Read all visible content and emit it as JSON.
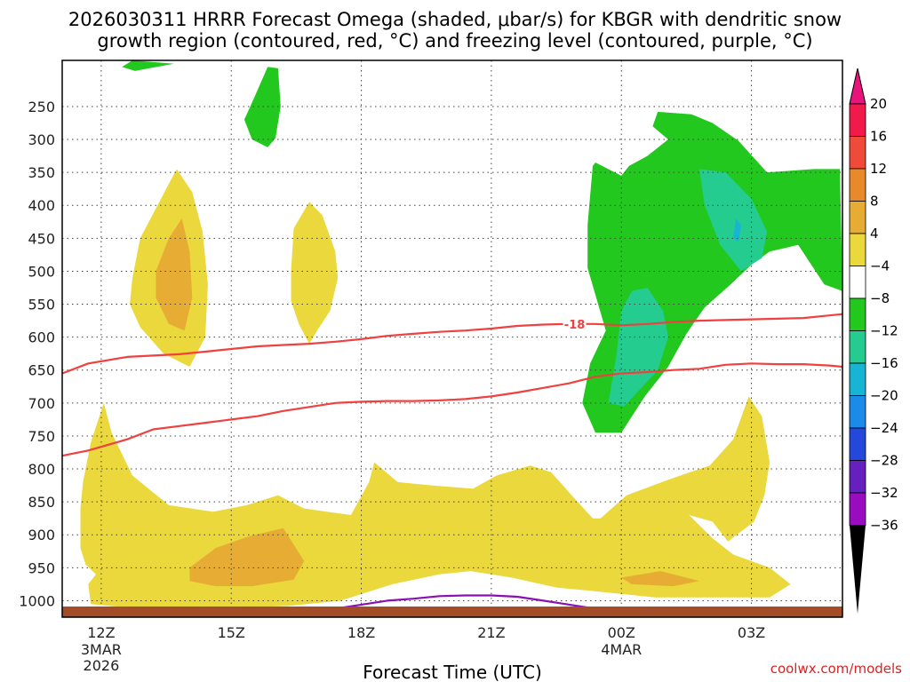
{
  "chart_data": {
    "type": "contour",
    "title_line1": "2026030311 HRRR Forecast Omega (shaded, μbar/s) for KBGR with dendritic snow",
    "title_line2": "growth region (contoured, red, °C) and freezing level (contoured, purple, °C)",
    "xlabel": "Forecast Time (UTC)",
    "watermark": "coolwx.com/models",
    "x_range_hours": [
      -1.5,
      28.5
    ],
    "x_ticks": [
      {
        "hour": 0,
        "label": "12Z",
        "sub1": "3MAR",
        "sub2": "2026"
      },
      {
        "hour": 5,
        "label": "15Z",
        "sub1": "",
        "sub2": ""
      },
      {
        "hour": 10,
        "label": "18Z",
        "sub1": "",
        "sub2": ""
      },
      {
        "hour": 15,
        "label": "21Z",
        "sub1": "",
        "sub2": ""
      },
      {
        "hour": 20,
        "label": "00Z",
        "sub1": "4MAR",
        "sub2": ""
      },
      {
        "hour": 25,
        "label": "03Z",
        "sub1": "",
        "sub2": ""
      }
    ],
    "y_range_hpa": [
      1025,
      180
    ],
    "y_ticks": [
      250,
      300,
      350,
      400,
      450,
      500,
      550,
      600,
      650,
      700,
      750,
      800,
      850,
      900,
      950,
      1000
    ],
    "colorbar": {
      "levels": [
        "20",
        "16",
        "12",
        "8",
        "4",
        "−4",
        "−8",
        "−12",
        "−16",
        "−20",
        "−24",
        "−28",
        "−32",
        "−36"
      ],
      "colors": [
        "#f21a4a",
        "#f04a3a",
        "#e88a2c",
        "#e6ac34",
        "#ead83c",
        "#ffffff",
        "#22c81e",
        "#24cc90",
        "#18b4d4",
        "#1c8ae8",
        "#2448dc",
        "#6620c0",
        "#9a0cc0",
        "#a8a8a8"
      ],
      "top_arrow_color": "#e8147c",
      "bottom_arrow_color": "#000000"
    },
    "contour_labels": [
      {
        "label": "-18",
        "hour": 18.2,
        "hpa": 580
      }
    ],
    "omega_regions": [
      {
        "omega": "-4 to -8",
        "color": "#22c81e",
        "pts": [
          [
            0.8,
            190
          ],
          [
            1.3,
            196
          ],
          [
            2.8,
            185
          ],
          [
            1.2,
            180
          ]
        ]
      },
      {
        "omega": "-4 to -8",
        "color": "#22c81e",
        "pts": [
          [
            5.9,
            235
          ],
          [
            6.4,
            190
          ],
          [
            6.8,
            192
          ],
          [
            6.9,
            250
          ],
          [
            6.7,
            298
          ],
          [
            6.4,
            312
          ],
          [
            5.8,
            300
          ],
          [
            5.5,
            270
          ]
        ]
      },
      {
        "omega": "-4 to -8",
        "color": "#22c81e",
        "pts": [
          [
            19.0,
            335
          ],
          [
            20.0,
            355
          ],
          [
            20.3,
            340
          ],
          [
            21.0,
            325
          ],
          [
            21.8,
            300
          ],
          [
            21.2,
            280
          ],
          [
            21.4,
            258
          ],
          [
            22.7,
            262
          ],
          [
            23.5,
            275
          ],
          [
            24.5,
            302
          ],
          [
            25.6,
            350
          ],
          [
            27.4,
            345
          ],
          [
            28.4,
            345
          ],
          [
            28.5,
            530
          ],
          [
            27.8,
            520
          ],
          [
            26.8,
            460
          ],
          [
            25.7,
            470
          ],
          [
            25.0,
            490
          ],
          [
            24.2,
            520
          ],
          [
            23.2,
            555
          ],
          [
            22.5,
            595
          ],
          [
            21.8,
            645
          ],
          [
            20.9,
            690
          ],
          [
            20.0,
            745
          ],
          [
            19.0,
            745
          ],
          [
            18.5,
            700
          ],
          [
            18.8,
            640
          ],
          [
            19.4,
            590
          ],
          [
            18.7,
            495
          ],
          [
            18.7,
            430
          ],
          [
            18.9,
            340
          ]
        ]
      },
      {
        "omega": "-8 to -12",
        "color": "#24cc90",
        "pts": [
          [
            23.0,
            345
          ],
          [
            24.0,
            350
          ],
          [
            25.0,
            390
          ],
          [
            25.6,
            440
          ],
          [
            25.4,
            480
          ],
          [
            24.6,
            500
          ],
          [
            23.8,
            460
          ],
          [
            23.2,
            400
          ]
        ]
      },
      {
        "omega": "-8 to -12",
        "color": "#24cc90",
        "pts": [
          [
            21.0,
            525
          ],
          [
            21.6,
            560
          ],
          [
            21.8,
            600
          ],
          [
            21.4,
            650
          ],
          [
            20.7,
            680
          ],
          [
            20.1,
            705
          ],
          [
            19.5,
            700
          ],
          [
            19.8,
            630
          ],
          [
            20.0,
            560
          ],
          [
            20.4,
            530
          ]
        ]
      },
      {
        "omega": "-12 to -16",
        "color": "#18b4d4",
        "pts": [
          [
            24.4,
            420
          ],
          [
            24.6,
            430
          ],
          [
            24.5,
            455
          ],
          [
            24.3,
            450
          ]
        ]
      },
      {
        "omega": "4 to 8",
        "color": "#ead83c",
        "pts": [
          [
            1.2,
            510
          ],
          [
            1.5,
            450
          ],
          [
            2.3,
            390
          ],
          [
            2.9,
            345
          ],
          [
            3.5,
            380
          ],
          [
            3.9,
            440
          ],
          [
            4.1,
            520
          ],
          [
            4.0,
            600
          ],
          [
            3.4,
            645
          ],
          [
            2.4,
            625
          ],
          [
            1.5,
            585
          ],
          [
            1.1,
            550
          ]
        ]
      },
      {
        "omega": "8 to 12",
        "color": "#e6ac34",
        "pts": [
          [
            2.1,
            500
          ],
          [
            2.6,
            450
          ],
          [
            3.1,
            420
          ],
          [
            3.4,
            470
          ],
          [
            3.5,
            540
          ],
          [
            3.2,
            590
          ],
          [
            2.6,
            580
          ],
          [
            2.1,
            540
          ]
        ]
      },
      {
        "omega": "4 to 8",
        "color": "#ead83c",
        "pts": [
          [
            7.3,
            500
          ],
          [
            7.4,
            435
          ],
          [
            8.0,
            395
          ],
          [
            8.5,
            415
          ],
          [
            9.0,
            470
          ],
          [
            9.1,
            510
          ],
          [
            8.8,
            560
          ],
          [
            8.3,
            590
          ],
          [
            8.0,
            610
          ],
          [
            7.6,
            580
          ],
          [
            7.3,
            545
          ]
        ]
      },
      {
        "omega": "4 to 8",
        "color": "#ead83c",
        "pts": [
          [
            -0.8,
            860
          ],
          [
            -0.7,
            820
          ],
          [
            -0.4,
            760
          ],
          [
            0.1,
            700
          ],
          [
            0.4,
            745
          ],
          [
            1.2,
            810
          ],
          [
            2.6,
            855
          ],
          [
            4.3,
            865
          ],
          [
            5.6,
            855
          ],
          [
            6.8,
            840
          ],
          [
            7.8,
            860
          ],
          [
            9.6,
            870
          ],
          [
            10.3,
            820
          ],
          [
            10.5,
            790
          ],
          [
            11.4,
            820
          ],
          [
            12.7,
            825
          ],
          [
            14.3,
            830
          ],
          [
            15.2,
            810
          ],
          [
            16.5,
            795
          ],
          [
            17.3,
            805
          ],
          [
            18.2,
            845
          ],
          [
            18.9,
            875
          ],
          [
            19.2,
            875
          ],
          [
            20.2,
            840
          ],
          [
            21.9,
            815
          ],
          [
            23.4,
            795
          ],
          [
            24.3,
            755
          ],
          [
            24.9,
            690
          ],
          [
            25.4,
            720
          ],
          [
            25.7,
            790
          ],
          [
            25.5,
            840
          ],
          [
            25.1,
            880
          ],
          [
            24.1,
            910
          ],
          [
            23.5,
            880
          ],
          [
            22.6,
            870
          ],
          [
            23.5,
            905
          ],
          [
            24.3,
            930
          ],
          [
            25.7,
            950
          ],
          [
            26.5,
            975
          ],
          [
            25.7,
            995
          ],
          [
            23.3,
            995
          ],
          [
            21.3,
            995
          ],
          [
            18.8,
            985
          ],
          [
            17.5,
            980
          ],
          [
            15.8,
            965
          ],
          [
            14.2,
            955
          ],
          [
            13.0,
            960
          ],
          [
            11.2,
            975
          ],
          [
            9.2,
            1000
          ],
          [
            7.2,
            1008
          ],
          [
            4.3,
            1012
          ],
          [
            1.4,
            1012
          ],
          [
            -0.4,
            1005
          ],
          [
            -0.5,
            975
          ],
          [
            -0.2,
            960
          ],
          [
            -0.6,
            945
          ],
          [
            -0.8,
            920
          ],
          [
            -0.8,
            890
          ]
        ]
      },
      {
        "omega": "8 to 12",
        "color": "#e6ac34",
        "pts": [
          [
            3.4,
            950
          ],
          [
            4.4,
            920
          ],
          [
            5.7,
            902
          ],
          [
            7.0,
            890
          ],
          [
            7.8,
            940
          ],
          [
            7.4,
            968
          ],
          [
            5.8,
            978
          ],
          [
            4.4,
            978
          ],
          [
            3.4,
            970
          ]
        ]
      },
      {
        "omega": "8 to 12",
        "color": "#e6ac34",
        "pts": [
          [
            20.0,
            965
          ],
          [
            21.5,
            955
          ],
          [
            23.0,
            970
          ],
          [
            22.0,
            978
          ],
          [
            20.4,
            975
          ]
        ]
      }
    ],
    "series": [
      {
        "name": "-18 C dendritic growth top",
        "color": "#f04040",
        "hours": [
          -1.5,
          -0.5,
          1,
          2,
          3,
          4,
          5,
          6,
          7,
          8,
          9,
          10,
          11,
          12,
          13,
          14,
          15,
          16,
          17,
          18,
          19,
          20,
          21,
          22,
          23,
          24,
          25,
          26,
          27,
          28,
          28.5
        ],
        "hpa": [
          655,
          640,
          630,
          628,
          626,
          622,
          618,
          614,
          612,
          610,
          607,
          603,
          598,
          595,
          592,
          590,
          587,
          583,
          581,
          580,
          580,
          582,
          580,
          577,
          575,
          574,
          573,
          572,
          571,
          567,
          565
        ]
      },
      {
        "name": "-12 C dendritic growth bottom",
        "color": "#f04040",
        "hours": [
          -1.5,
          -0.5,
          1,
          2,
          3,
          4,
          5,
          6,
          7,
          8,
          9,
          10,
          11,
          12,
          13,
          14,
          15,
          16,
          17,
          18,
          19,
          20,
          21,
          22,
          23,
          24,
          25,
          26,
          27,
          28,
          28.5
        ],
        "hpa": [
          780,
          772,
          755,
          740,
          735,
          730,
          725,
          720,
          712,
          706,
          700,
          698,
          697,
          697,
          696,
          694,
          690,
          684,
          677,
          670,
          660,
          655,
          653,
          650,
          648,
          642,
          640,
          641,
          641,
          643,
          645
        ]
      },
      {
        "name": "0 C freezing level",
        "color": "#8a10b4",
        "hours": [
          6.9,
          8,
          9,
          10,
          11,
          12,
          13,
          14,
          15,
          16,
          17,
          18,
          19,
          19.8
        ],
        "hpa": [
          1020,
          1018,
          1012,
          1006,
          1000,
          997,
          993,
          992,
          992,
          994,
          1000,
          1006,
          1012,
          1018
        ]
      }
    ]
  }
}
